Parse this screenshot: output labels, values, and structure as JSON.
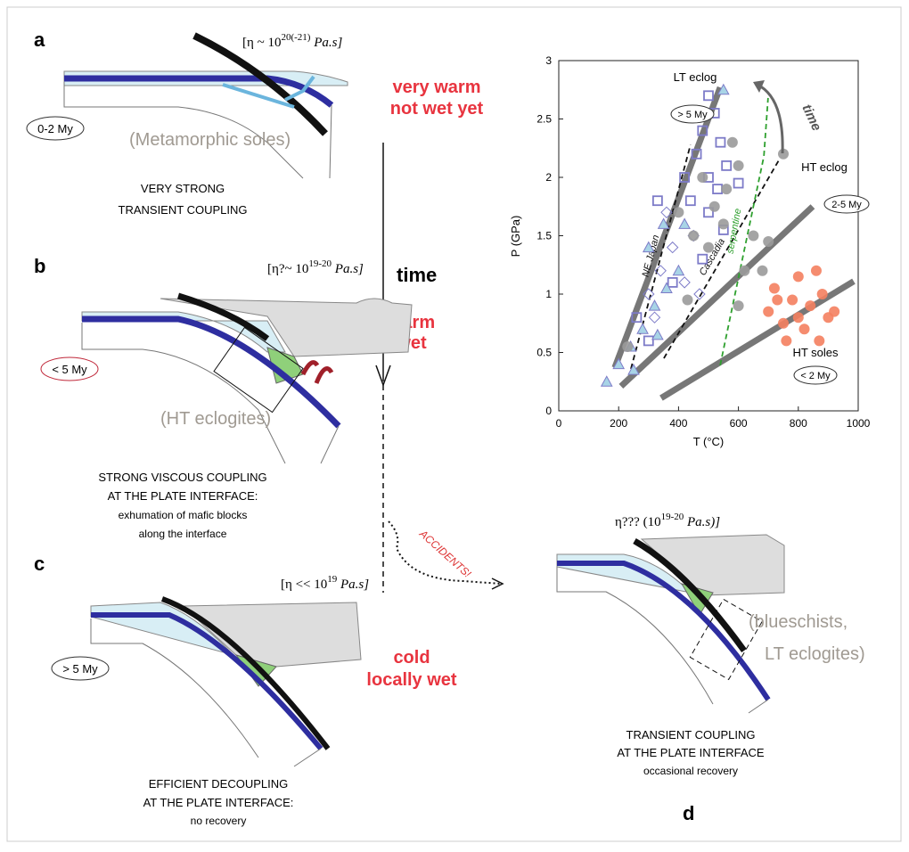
{
  "panels": {
    "a": {
      "letter": "a",
      "viscosity": {
        "prefix": "[η ~ 10",
        "sup": "20(-21)",
        "suffix": " Pa.s]"
      },
      "age": "0-2 My",
      "rocks": "(Metamorphic soles)",
      "caption": [
        "VERY STRONG",
        "TRANSIENT COUPLING"
      ],
      "conditions": [
        "very warm",
        "not wet yet"
      ]
    },
    "b": {
      "letter": "b",
      "viscosity": {
        "prefix": "[η?~ 10",
        "sup": "19-20",
        "suffix": " Pa.s]"
      },
      "age": "< 5 My",
      "rocks": "(HT eclogites)",
      "caption": [
        "STRONG VISCOUS COUPLING",
        "AT THE PLATE INTERFACE:",
        "exhumation of mafic blocks",
        "along the interface"
      ],
      "conditions": [
        "warm",
        "wet"
      ]
    },
    "c": {
      "letter": "c",
      "viscosity": {
        "prefix": "[η << 10",
        "sup": "19",
        "suffix": " Pa.s]"
      },
      "age": "> 5 My",
      "caption": [
        "EFFICIENT DECOUPLING",
        "AT THE PLATE INTERFACE:",
        "no recovery"
      ],
      "conditions": [
        "cold",
        "locally wet"
      ]
    },
    "d": {
      "letter": "d",
      "viscosity": {
        "prefix": "η??? (10",
        "sup": "19-20",
        "suffix": " Pa.s)]"
      },
      "rocks": [
        "(blueschists,",
        "LT eclogites)"
      ],
      "caption": [
        "TRANSIENT COUPLING",
        "AT THE PLATE INTERFACE",
        "occasional recovery"
      ]
    }
  },
  "timeline": {
    "label": "time",
    "accidents": "ACCIDENTS!"
  },
  "chart_data": {
    "type": "scatter",
    "xlabel": "T (°C)",
    "ylabel": "P (GPa)",
    "xlim": [
      0,
      1000
    ],
    "ylim": [
      0,
      3
    ],
    "xticks": [
      0,
      200,
      400,
      600,
      800,
      1000
    ],
    "yticks": [
      0,
      0.5,
      1,
      1.5,
      2,
      2.5,
      3
    ],
    "annotations": {
      "lt_eclog": "LT eclog",
      "lt_age": "> 5 My",
      "time": "time",
      "ht_eclog": "HT eclog",
      "ht_age": "2-5 My",
      "ht_soles": "HT soles",
      "soles_age": "< 2 My"
    },
    "series": [
      {
        "marker": "square",
        "color": "#7d7bc8",
        "x": [
          500,
          520,
          480,
          540,
          460,
          500,
          530,
          560,
          440,
          500,
          550,
          600,
          420,
          480,
          330,
          380,
          260,
          300
        ],
        "values": [
          2.7,
          2.55,
          2.4,
          2.3,
          2.2,
          2.0,
          1.9,
          2.1,
          1.8,
          1.7,
          1.55,
          1.95,
          2.0,
          1.3,
          1.8,
          1.1,
          0.8,
          0.6
        ]
      },
      {
        "marker": "triangle",
        "color": "#7d7bc8",
        "x": [
          160,
          200,
          240,
          280,
          320,
          360,
          400,
          300,
          350,
          420,
          550,
          250,
          330
        ],
        "values": [
          0.25,
          0.4,
          0.55,
          0.7,
          0.9,
          1.05,
          1.2,
          1.4,
          1.6,
          1.6,
          2.75,
          0.35,
          0.65
        ]
      },
      {
        "marker": "diamond",
        "color": "#7d7bc8",
        "x": [
          300,
          340,
          380,
          420,
          450,
          360,
          320,
          470
        ],
        "values": [
          1.0,
          1.2,
          1.4,
          1.1,
          1.5,
          1.7,
          0.8,
          1.0
        ]
      },
      {
        "marker": "circle",
        "color": "#9a9a9a",
        "x": [
          400,
          450,
          500,
          520,
          560,
          600,
          580,
          620,
          650,
          700,
          480,
          550,
          750,
          430,
          600,
          230,
          680
        ],
        "values": [
          1.7,
          1.5,
          1.4,
          1.75,
          1.9,
          2.1,
          2.3,
          1.2,
          1.5,
          1.45,
          2.0,
          1.6,
          2.2,
          0.95,
          0.9,
          0.55,
          1.2
        ]
      },
      {
        "marker": "circle",
        "color": "#f4805f",
        "x": [
          700,
          720,
          750,
          780,
          800,
          820,
          840,
          860,
          880,
          900,
          760,
          730,
          870,
          920,
          800
        ],
        "values": [
          0.85,
          1.05,
          0.75,
          0.95,
          1.15,
          0.7,
          0.9,
          1.2,
          1.0,
          0.8,
          0.6,
          0.95,
          0.6,
          0.85,
          0.8
        ]
      }
    ],
    "lines": [
      {
        "color": "#555555",
        "dash": false,
        "x": [
          187,
          539
        ],
        "values": [
          0.37,
          2.77
        ]
      },
      {
        "color": "#555555",
        "dash": false,
        "x": [
          208,
          848
        ],
        "values": [
          0.21,
          1.75
        ]
      },
      {
        "color": "#555555",
        "dash": false,
        "x": [
          342,
          985
        ],
        "values": [
          0.11,
          1.11
        ]
      },
      {
        "color": "#111111",
        "dash": true,
        "label": "NE Japan",
        "x": [
          241,
          440
        ],
        "values": [
          0.36,
          2.28
        ]
      },
      {
        "color": "#111111",
        "dash": true,
        "label": "Cascadia",
        "x": [
          351,
          738
        ],
        "values": [
          0.45,
          2.16
        ]
      },
      {
        "color": "#2ea02e",
        "dash": true,
        "label": "serpentine",
        "x": [
          539,
          685,
          699
        ],
        "values": [
          0.39,
          2.18,
          2.68
        ]
      }
    ]
  }
}
